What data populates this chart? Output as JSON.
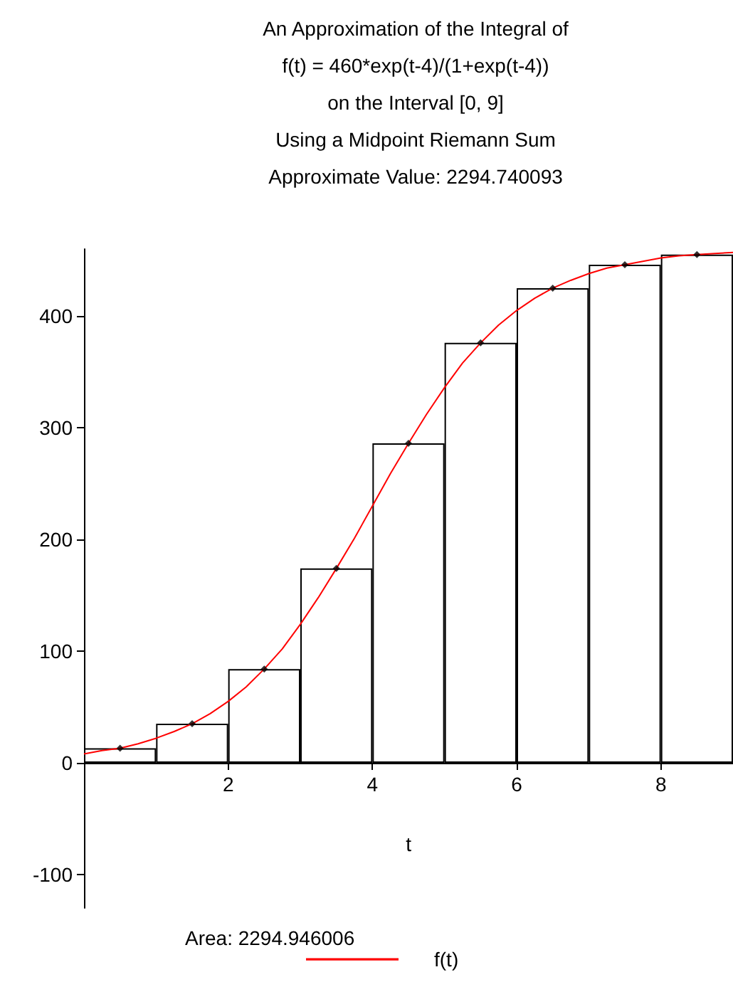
{
  "chart_data": {
    "type": "bar",
    "title": "An Approximation of the Integral of\nf(t) = 460*exp(t-4)/(1+exp(t-4))\non the Interval [0, 9]\nUsing a Midpoint Riemann Sum\nApproximate Value: 2294.740093",
    "xlabel": "t",
    "xlim": [
      0,
      9
    ],
    "xticks": [
      2,
      4,
      6,
      8
    ],
    "ylim": [
      -130,
      460
    ],
    "yticks": [
      -100,
      0,
      100,
      200,
      300,
      400
    ],
    "grid": false,
    "legend": "bottom",
    "annotations": [
      "Area: 2294.946006"
    ],
    "series": [
      {
        "color": "#000000",
        "x": [
          0.5,
          1.5,
          2.5,
          3.5,
          4.5,
          5.5,
          6.5,
          7.5,
          8.5
        ],
        "values": [
          13,
          35,
          84,
          174,
          286,
          376,
          425,
          446,
          455
        ]
      },
      {
        "type": "scatter",
        "color": "#000000",
        "marker": "diamond",
        "x": [
          0.5,
          1.5,
          2.5,
          3.5,
          4.5,
          5.5,
          6.5,
          7.5,
          8.5
        ],
        "values": [
          13,
          35,
          84,
          174,
          286,
          376,
          425,
          446,
          455
        ]
      },
      {
        "type": "line",
        "name": "f(t)",
        "color": "#ff0000",
        "x": [
          0,
          0.25,
          0.5,
          0.75,
          1,
          1.25,
          1.5,
          1.75,
          2,
          2.25,
          2.5,
          2.75,
          3,
          3.25,
          3.5,
          3.75,
          4,
          4.25,
          4.5,
          4.75,
          5,
          5.25,
          5.5,
          5.75,
          6,
          6.25,
          6.5,
          6.75,
          7,
          7.25,
          7.5,
          7.75,
          8,
          8.25,
          8.5,
          8.75,
          9
        ],
        "values": [
          8,
          11,
          13,
          17,
          22,
          28,
          35,
          44,
          55,
          68,
          84,
          102,
          124,
          148,
          174,
          201,
          230,
          259,
          286,
          312,
          336,
          358,
          376,
          392,
          405,
          416,
          425,
          432,
          438,
          443,
          446,
          449,
          452,
          454,
          455,
          456,
          457
        ]
      }
    ]
  }
}
